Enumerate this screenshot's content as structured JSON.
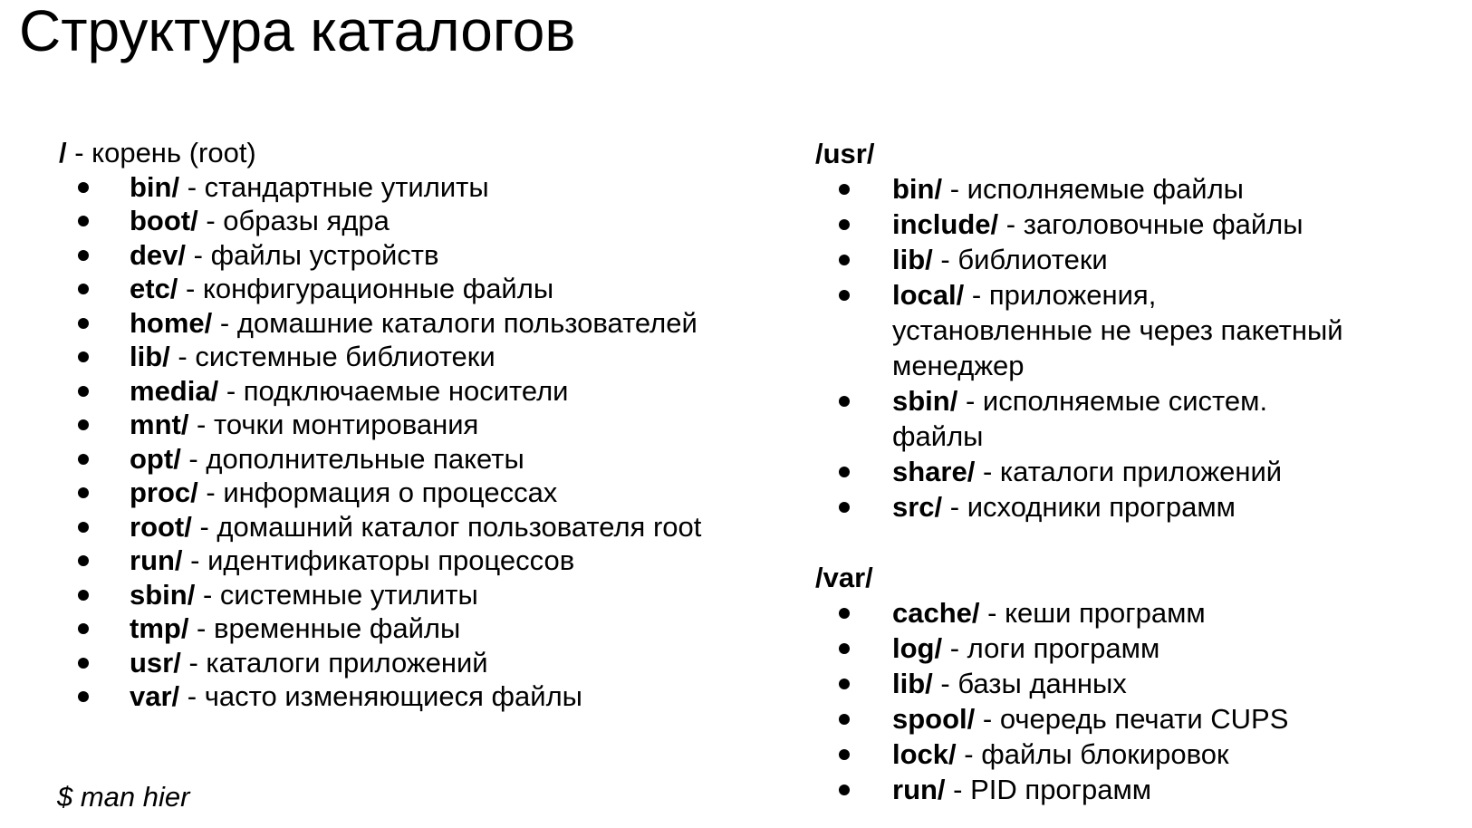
{
  "title": "Структура каталогов",
  "footer_command": "$ man hier",
  "separator": " - ",
  "colors": {
    "text": "#000000",
    "background": "#ffffff"
  },
  "sections": [
    {
      "key": "root",
      "header": {
        "path": "/",
        "suffix": " - корень (root)"
      },
      "items": [
        {
          "name": "bin/",
          "desc": "стандартные утилиты"
        },
        {
          "name": "boot/",
          "desc": "образы ядра"
        },
        {
          "name": "dev/",
          "desc": "файлы устройств"
        },
        {
          "name": "etc/",
          "desc": "конфигурационные файлы"
        },
        {
          "name": "home/",
          "desc": "домашние каталоги пользователей"
        },
        {
          "name": "lib/",
          "desc": "системные библиотеки"
        },
        {
          "name": "media/",
          "desc": "подключаемые носители"
        },
        {
          "name": "mnt/",
          "desc": "точки монтирования"
        },
        {
          "name": "opt/",
          "desc": "дополнительные пакеты"
        },
        {
          "name": "proc/",
          "desc": "информация о процессах"
        },
        {
          "name": "root/",
          "desc": "домашний каталог пользователя root"
        },
        {
          "name": "run/",
          "desc": "идентификаторы процессов"
        },
        {
          "name": "sbin/",
          "desc": "системные утилиты"
        },
        {
          "name": "tmp/",
          "desc": "временные файлы"
        },
        {
          "name": "usr/",
          "desc": "каталоги приложений"
        },
        {
          "name": "var/",
          "desc": "часто изменяющиеся файлы"
        }
      ]
    },
    {
      "key": "usr",
      "header": {
        "path": "/usr/",
        "suffix": ""
      },
      "items": [
        {
          "name": "bin/",
          "desc": "исполняемые файлы"
        },
        {
          "name": "include/",
          "desc": "заголовочные файлы"
        },
        {
          "name": "lib/",
          "desc": "библиотеки"
        },
        {
          "name": "local/",
          "desc": "приложения, установленные не через пакетный менеджер"
        },
        {
          "name": "sbin/",
          "desc": "исполняемые систем. файлы"
        },
        {
          "name": "share/",
          "desc": "каталоги приложений"
        },
        {
          "name": "src/",
          "desc": "исходники программ"
        }
      ]
    },
    {
      "key": "var",
      "header": {
        "path": "/var/",
        "suffix": ""
      },
      "items": [
        {
          "name": "cache/",
          "desc": "кеши программ"
        },
        {
          "name": "log/",
          "desc": "логи программ"
        },
        {
          "name": "lib/",
          "desc": "базы данных"
        },
        {
          "name": "spool/",
          "desc": "очередь печати CUPS"
        },
        {
          "name": "lock/",
          "desc": "файлы блокировок"
        },
        {
          "name": "run/",
          "desc": "PID программ"
        }
      ]
    }
  ]
}
